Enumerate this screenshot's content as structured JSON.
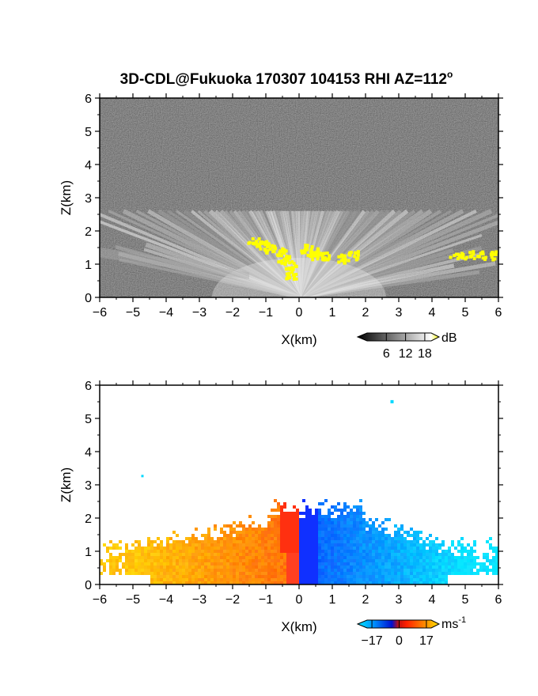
{
  "title": "3D-CDL@Fukuoka 170307 104153 RHI AZ=112",
  "title_superscript": "o",
  "chart_data": [
    {
      "type": "heatmap",
      "name": "backscatter-intensity",
      "xlabel": "X(km)",
      "ylabel": "Z(km)",
      "xlim": [
        -6,
        6
      ],
      "ylim": [
        0,
        6
      ],
      "xticks": [
        "-6",
        "-5",
        "-4",
        "-3",
        "-2",
        "-1",
        "0",
        "1",
        "2",
        "3",
        "4",
        "5",
        "6"
      ],
      "yticks": [
        "0",
        "1",
        "2",
        "3",
        "4",
        "5",
        "6"
      ],
      "colorbar": {
        "unit": "dB",
        "ticks": [
          "6",
          "12",
          "18"
        ],
        "range": [
          0,
          20
        ],
        "colors": [
          "#000000",
          "#ffffff",
          "#ffff00"
        ]
      },
      "colors": {
        "background": "#1e1e1e",
        "echo": "#d8d8d8",
        "strong": "#ffff00"
      }
    },
    {
      "type": "heatmap",
      "name": "doppler-velocity",
      "xlabel": "X(km)",
      "ylabel": "Z(km)",
      "xlim": [
        -6,
        6
      ],
      "ylim": [
        0,
        6
      ],
      "xticks": [
        "-6",
        "-5",
        "-4",
        "-3",
        "-2",
        "-1",
        "0",
        "1",
        "2",
        "3",
        "4",
        "5",
        "6"
      ],
      "yticks": [
        "0",
        "1",
        "2",
        "3",
        "4",
        "5",
        "6"
      ],
      "colorbar": {
        "unit": "ms",
        "unit_superscript": "-1",
        "ticks": [
          "-17",
          "0",
          "17"
        ],
        "range": [
          -20,
          20
        ],
        "colors": [
          "#00e5ff",
          "#0050ff",
          "#0010d0",
          "#e82010",
          "#ff7000",
          "#ffd000"
        ]
      },
      "colors": {
        "positive": "#ffb000",
        "near-zero-pos": "#ff3010",
        "near-zero-neg": "#1030ff",
        "negative": "#00b8ff"
      }
    }
  ]
}
